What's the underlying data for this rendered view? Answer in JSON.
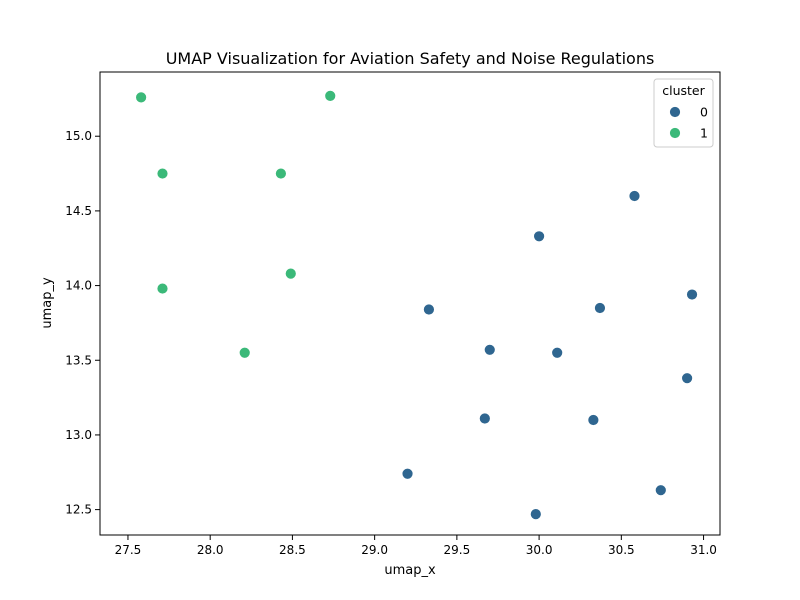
{
  "chart_data": {
    "type": "scatter",
    "title": "UMAP Visualization for Aviation Safety and Noise Regulations",
    "xlabel": "umap_x",
    "ylabel": "umap_y",
    "xlim": [
      27.33,
      31.1
    ],
    "ylim": [
      12.33,
      15.43
    ],
    "x_ticks": [
      27.5,
      28.0,
      28.5,
      29.0,
      29.5,
      30.0,
      30.5,
      31.0
    ],
    "x_tick_labels": [
      "27.5",
      "28.0",
      "28.5",
      "29.0",
      "29.5",
      "30.0",
      "30.5",
      "31.0"
    ],
    "y_ticks": [
      12.5,
      13.0,
      13.5,
      14.0,
      14.5,
      15.0
    ],
    "y_tick_labels": [
      "12.5",
      "13.0",
      "13.5",
      "14.0",
      "14.5",
      "15.0"
    ],
    "grid": false,
    "legend": {
      "title": "cluster",
      "placement": "top-right"
    },
    "series": [
      {
        "name": "0",
        "color": "#2f6690",
        "points": [
          [
            30.58,
            14.6
          ],
          [
            30.0,
            14.33
          ],
          [
            30.93,
            13.94
          ],
          [
            30.37,
            13.85
          ],
          [
            29.33,
            13.84
          ],
          [
            29.7,
            13.57
          ],
          [
            30.11,
            13.55
          ],
          [
            30.9,
            13.38
          ],
          [
            29.67,
            13.11
          ],
          [
            30.33,
            13.1
          ],
          [
            29.2,
            12.74
          ],
          [
            30.74,
            12.63
          ],
          [
            29.98,
            12.47
          ]
        ]
      },
      {
        "name": "1",
        "color": "#3bb979",
        "points": [
          [
            27.58,
            15.26
          ],
          [
            28.73,
            15.27
          ],
          [
            27.71,
            14.75
          ],
          [
            28.43,
            14.75
          ],
          [
            28.49,
            14.08
          ],
          [
            27.71,
            13.98
          ],
          [
            28.21,
            13.55
          ]
        ]
      }
    ]
  }
}
